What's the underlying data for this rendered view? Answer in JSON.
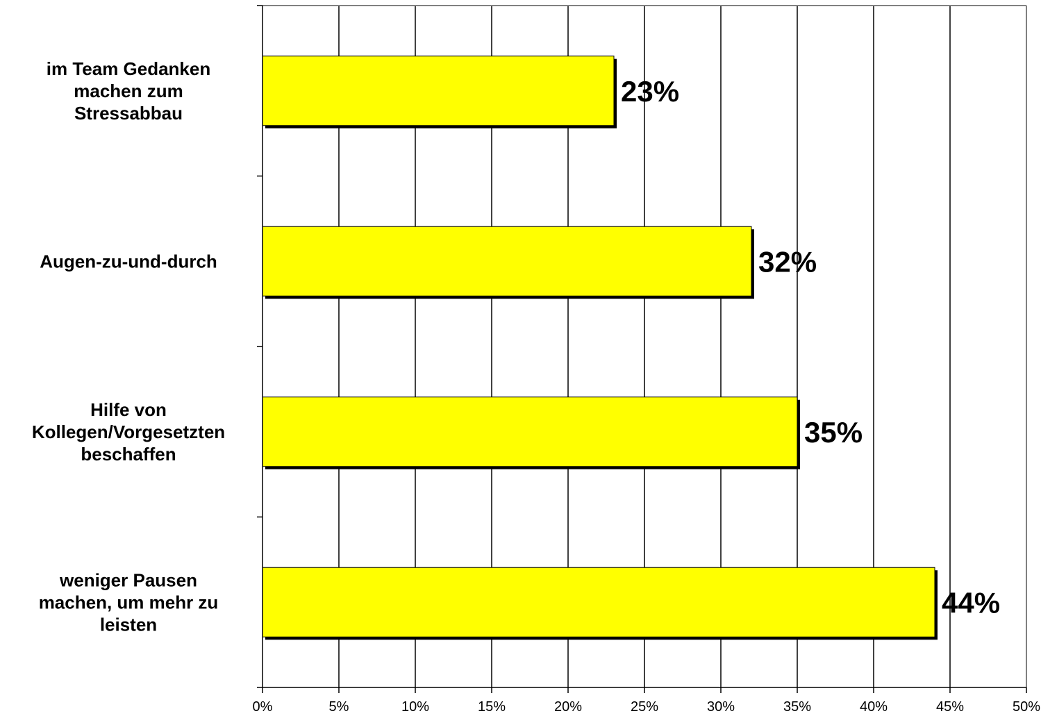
{
  "chart_data": {
    "type": "bar",
    "orientation": "horizontal",
    "categories": [
      [
        "im Team Gedanken",
        "machen zum",
        "Stressabbau"
      ],
      [
        "Augen-zu-und-durch"
      ],
      [
        "Hilfe von",
        "Kollegen/Vorgesetzten",
        "beschaffen"
      ],
      [
        "weniger Pausen",
        "machen, um mehr zu",
        "leisten"
      ]
    ],
    "values": [
      23,
      32,
      35,
      44
    ],
    "value_labels": [
      "23%",
      "32%",
      "35%",
      "44%"
    ],
    "xlim": [
      0,
      50
    ],
    "x_ticks": [
      0,
      5,
      10,
      15,
      20,
      25,
      30,
      35,
      40,
      45,
      50
    ],
    "x_tick_labels": [
      "0%",
      "5%",
      "10%",
      "15%",
      "20%",
      "25%",
      "30%",
      "35%",
      "40%",
      "45%",
      "50%"
    ],
    "grid": "vertical",
    "bar_color": "#ffff00",
    "bar_edge_color": "#000000",
    "shadow_color": "#000000"
  }
}
